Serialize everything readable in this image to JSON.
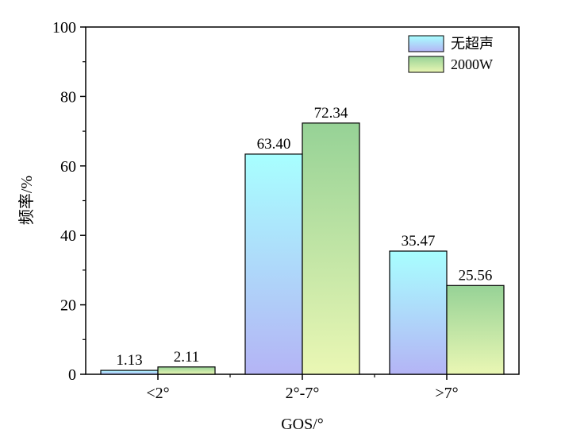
{
  "chart_data": {
    "type": "bar",
    "categories": [
      "<2°",
      "2°-7°",
      ">7°"
    ],
    "series": [
      {
        "name": "无超声",
        "values": [
          1.13,
          63.4,
          35.47
        ],
        "labels": [
          "1.13",
          "63.40",
          "35.47"
        ],
        "gradient": [
          "#a8ffff",
          "#b4b4f5"
        ]
      },
      {
        "name": "2000W",
        "values": [
          2.11,
          72.34,
          25.56
        ],
        "labels": [
          "2.11",
          "72.34",
          "25.56"
        ],
        "gradient": [
          "#96d296",
          "#eaf7b4"
        ]
      }
    ],
    "xlabel": "GOS/°",
    "ylabel": "频率/%",
    "ylim": [
      0,
      100
    ],
    "yticks": [
      0,
      20,
      40,
      60,
      80,
      100
    ],
    "grid": false,
    "legend_position": "top-right"
  }
}
